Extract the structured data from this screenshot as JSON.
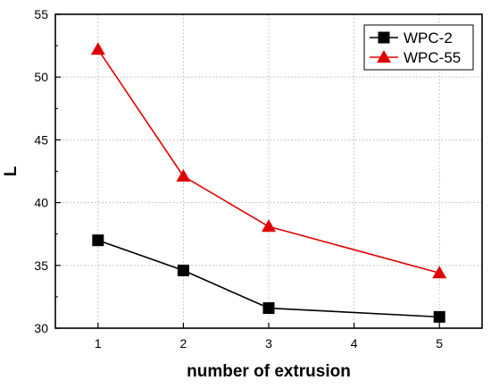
{
  "chart_data": {
    "type": "line",
    "title": "",
    "xlabel": "number of extrusion",
    "ylabel": "L",
    "xlim": [
      0.5,
      5.5
    ],
    "ylim": [
      30,
      55
    ],
    "xticks": [
      1,
      2,
      3,
      4,
      5
    ],
    "yticks": [
      30,
      35,
      40,
      45,
      50,
      55
    ],
    "grid": true,
    "legend_position": "top-right",
    "series": [
      {
        "name": "WPC-2",
        "color": "#000000",
        "marker": "square",
        "x": [
          1,
          2,
          3,
          5
        ],
        "y": [
          37.0,
          34.6,
          31.6,
          30.9
        ]
      },
      {
        "name": "WPC-55",
        "color": "#e00000",
        "marker": "triangle",
        "x": [
          1,
          2,
          3,
          5
        ],
        "y": [
          52.2,
          42.1,
          38.1,
          34.4
        ]
      }
    ]
  }
}
